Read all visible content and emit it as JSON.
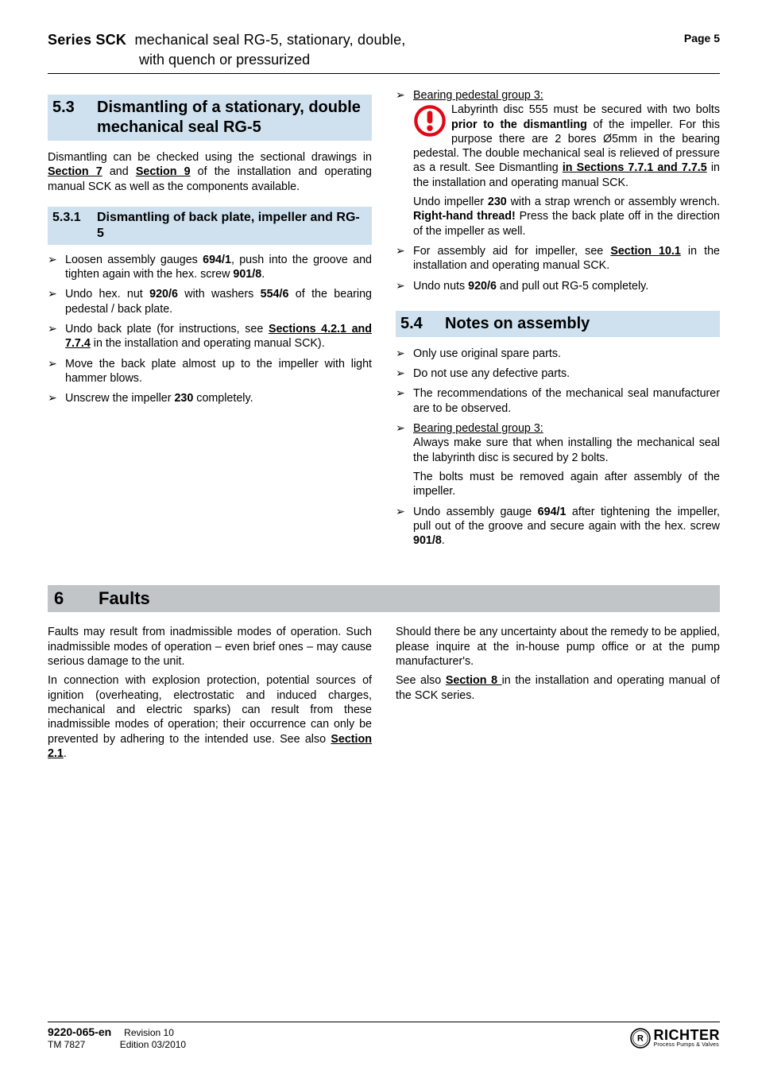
{
  "colors": {
    "heading_bg_blue": "#cfe1ef",
    "heading_bg_gray": "#c1c5c8",
    "text": "#000000",
    "page_bg": "#ffffff",
    "warn_red": "#e30613",
    "rule": "#000000"
  },
  "typography": {
    "body_font": "Arial",
    "body_size_pt": 11,
    "h2_size_pt": 15,
    "h3_size_pt": 12,
    "h1full_size_pt": 17
  },
  "header": {
    "series_label": "Series SCK",
    "series_desc": "mechanical seal RG-5, stationary, double,",
    "series_desc2": "with quench or pressurized",
    "page_label": "Page 5"
  },
  "left": {
    "h53_num": "5.3",
    "h53_txt": "Dismantling of a stationary, double mechanical seal RG-5",
    "p53": "Dismantling can be checked using the sectional drawings in <span class=\"sec-link\">Section 7</span> and <span class=\"sec-link\">Section 9</span> of the installation and operating manual SCK as well as the components available.",
    "h531_num": "5.3.1",
    "h531_txt": "Dismantling of back plate, impeller and RG-5",
    "b531": [
      "Loosen assembly gauges <b>694/1</b>, push into the groove and tighten again with the hex. screw <b>901/8</b>.",
      "Undo hex. nut <b>920/6</b> with washers <b>554/6</b> of the bearing pedestal / back plate.",
      "Undo back plate (for instructions, see <span class=\"sec-link\">Sections 4.2.1 and 7.7.4</span> in the installation and operating manual SCK).",
      "Move the back plate almost up to the impeller with light hammer blows.",
      "Unscrew the impeller <b>230</b> completely."
    ]
  },
  "right": {
    "bp3_label": "Bearing pedestal group 3:",
    "bp3_warn": "Labyrinth disc 555 must be secured with two bolts <b>prior to the dismantling</b> of the impeller. For this purpose there are 2 bores Ø5mm in the bearing pedestal. The double mechanical seal is relieved of pressure as a result. See Dismantling <span class=\"sec-link\">in Sections 7.7.1 and 7.7.5</span> in the installation and operating manual SCK.",
    "bp3_p2": "Undo impeller <b>230</b> with a strap wrench or assembly wrench. <b>Right-hand thread!</b> Press the back plate off in the direction of the impeller as well.",
    "b_after": [
      "For assembly aid for impeller, see <span class=\"sec-link\">Section 10.1</span> in the installation and operating manual SCK.",
      "Undo nuts <b>920/6</b> and pull out RG-5 completely."
    ],
    "h54_num": "5.4",
    "h54_txt": "Notes on assembly",
    "b54a": [
      "Only use original spare parts.",
      "Do not use any defective parts.",
      "The recommendations of the mechanical seal manufacturer are to be observed."
    ],
    "b54_bp3_head": "Bearing pedestal group 3:",
    "b54_bp3_body": "Always make sure that when installing the mechanical seal the labyrinth disc is secured by 2 bolts.",
    "b54_bp3_body2": "The bolts must be removed again after assembly of the impeller.",
    "b54_last": "Undo assembly gauge <b>694/1</b> after tightening the impeller, pull out of the groove and secure again with the hex. screw <b>901/8</b>."
  },
  "sec6": {
    "num": "6",
    "txt": "Faults",
    "left_p1": "Faults may result from inadmissible modes of operation. Such inadmissible modes of operation – even brief ones – may cause serious damage to the unit.",
    "left_p2": "In connection with explosion protection, potential sources of ignition (overheating, electrostatic and induced charges, mechanical and electric sparks) can result from these inadmissible modes of operation; their occurrence can only be prevented by adhering to the intended use. See also <span class=\"sec-link\">Section 2.1</span>.",
    "right_p1": "Should there be any uncertainty about the remedy to be applied, please inquire at the in-house pump office or at the pump manufacturer's.",
    "right_p2": "See also <span class=\"sec-link\">Section 8 </span>in the installation and operating manual of the SCK series."
  },
  "footer": {
    "docnum": "9220-065-en",
    "rev": "Revision  10",
    "tm": "TM 7827",
    "edition": "Edition  03/2010",
    "brand": "RICHTER",
    "tag": "Process Pumps & Valves"
  }
}
